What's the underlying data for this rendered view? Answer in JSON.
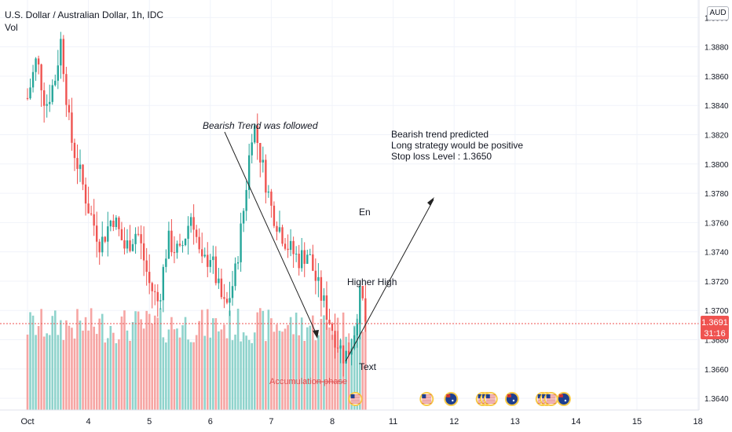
{
  "header": {
    "symbol_title": "U.S. Dollar / Australian Dollar, 1h, IDC",
    "indicator": "Vol",
    "currency": "AUD"
  },
  "price_label": {
    "price": "1.3691",
    "countdown": "31:16"
  },
  "annotations": {
    "bearish_followed": "Bearish Trend was followed",
    "prediction_line1": "Bearish trend predicted",
    "prediction_line2": "Long strategy would be positive",
    "prediction_line3": "Stop loss Level : 1.3650",
    "en": "En",
    "higher_high": "Higher High",
    "text": "Text",
    "accumulation": "Accumulation phase"
  },
  "chart_data": {
    "type": "candlestick",
    "y_ticks": [
      "1.3900",
      "1.3880",
      "1.3860",
      "1.3840",
      "1.3820",
      "1.3800",
      "1.3780",
      "1.3760",
      "1.3740",
      "1.3720",
      "1.3700",
      "1.3680",
      "1.3660",
      "1.3640"
    ],
    "x_ticks": [
      "Oct",
      "4",
      "5",
      "6",
      "7",
      "8",
      "11",
      "12",
      "13",
      "14",
      "15",
      "18"
    ],
    "ylim": [
      1.3632,
      1.3912
    ],
    "current_price": 1.3691,
    "price_path": [
      [
        0,
        1.3845
      ],
      [
        0.15,
        1.3872
      ],
      [
        0.3,
        1.384
      ],
      [
        0.45,
        1.3858
      ],
      [
        0.55,
        1.3885
      ],
      [
        0.7,
        1.382
      ],
      [
        0.85,
        1.3795
      ],
      [
        1.0,
        1.377
      ],
      [
        1.2,
        1.3745
      ],
      [
        1.4,
        1.3765
      ],
      [
        1.6,
        1.3742
      ],
      [
        1.8,
        1.3755
      ],
      [
        2.0,
        1.3718
      ],
      [
        2.15,
        1.3705
      ],
      [
        2.3,
        1.3748
      ],
      [
        2.5,
        1.3738
      ],
      [
        2.7,
        1.3768
      ],
      [
        2.85,
        1.373
      ],
      [
        3.0,
        1.3738
      ],
      [
        3.15,
        1.3712
      ],
      [
        3.25,
        1.37
      ],
      [
        3.4,
        1.3723
      ],
      [
        3.55,
        1.377
      ],
      [
        3.7,
        1.383
      ],
      [
        3.8,
        1.381
      ],
      [
        3.9,
        1.379
      ],
      [
        4.0,
        1.377
      ],
      [
        4.15,
        1.3755
      ],
      [
        4.3,
        1.3742
      ],
      [
        4.45,
        1.3735
      ],
      [
        4.6,
        1.374
      ],
      [
        4.75,
        1.3718
      ],
      [
        4.9,
        1.37
      ],
      [
        5.05,
        1.3682
      ],
      [
        5.2,
        1.3668
      ],
      [
        5.3,
        1.3675
      ],
      [
        5.38,
        1.369
      ],
      [
        5.45,
        1.371
      ],
      [
        5.5,
        1.3705
      ],
      [
        5.55,
        1.3691
      ]
    ],
    "volume_note": "volume bars fill the lower band"
  },
  "colors": {
    "up": "#26a69a",
    "down": "#ef5350",
    "vol_up": "#8fd3cc",
    "vol_down": "#f6a5a3",
    "grid": "#f0f3fa",
    "price_line": "#ef5350",
    "accumulation_text": "#e05050"
  },
  "events": {
    "markers": [
      {
        "kind": "us-flag-icon",
        "day_index": 5.38
      },
      {
        "kind": "us-flag-icon",
        "day_index": 6.55
      },
      {
        "kind": "au-flag-icon",
        "day_index": 6.95
      },
      {
        "kind": "us-flag-icon",
        "day_index": 7.47
      },
      {
        "kind": "us-flag-icon",
        "day_index": 7.54
      },
      {
        "kind": "us-flag-icon",
        "day_index": 7.6
      },
      {
        "kind": "au-flag-icon",
        "day_index": 7.95
      },
      {
        "kind": "us-flag-icon",
        "day_index": 8.45
      },
      {
        "kind": "us-flag-icon",
        "day_index": 8.52
      },
      {
        "kind": "us-flag-icon",
        "day_index": 8.59
      },
      {
        "kind": "au-flag-icon",
        "day_index": 8.8
      }
    ]
  }
}
